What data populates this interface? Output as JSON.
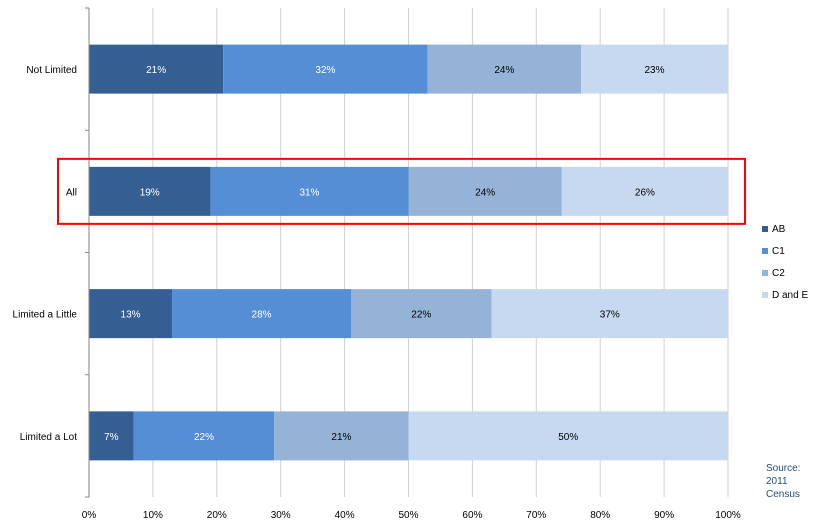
{
  "chart_data": {
    "type": "bar",
    "orientation": "horizontal",
    "stacked": "percent",
    "categories": [
      "Not Limited",
      "All",
      "Limited a Little",
      "Limited a Lot"
    ],
    "series": [
      {
        "name": "AB",
        "values": [
          21,
          19,
          13,
          7
        ],
        "color": "#355f93",
        "label_color": "#ffffff"
      },
      {
        "name": "C1",
        "values": [
          32,
          31,
          28,
          22
        ],
        "color": "#558ed5",
        "label_color": "#ffffff"
      },
      {
        "name": "C2",
        "values": [
          24,
          24,
          22,
          21
        ],
        "color": "#95b3d7",
        "label_color": "#000000"
      },
      {
        "name": "D and E",
        "values": [
          23,
          26,
          37,
          50
        ],
        "color": "#c6d9f1",
        "label_color": "#000000"
      }
    ],
    "data_labels": [
      [
        "21%",
        "32%",
        "24%",
        "23%"
      ],
      [
        "19%",
        "31%",
        "24%",
        "26%"
      ],
      [
        "13%",
        "28%",
        "22%",
        "37%"
      ],
      [
        "7%",
        "22%",
        "21%",
        "50%"
      ]
    ],
    "xlim": [
      0,
      100
    ],
    "x_ticks": [
      "0%",
      "10%",
      "20%",
      "30%",
      "40%",
      "50%",
      "60%",
      "70%",
      "80%",
      "90%",
      "100%"
    ],
    "grid": "vertical",
    "legend": "right",
    "highlight": {
      "category": "All",
      "color": "#ff0000"
    },
    "title": "",
    "xlabel": "",
    "ylabel": ""
  },
  "source_note": {
    "line1": "Source:",
    "line2": "2011",
    "line3": "Census"
  }
}
